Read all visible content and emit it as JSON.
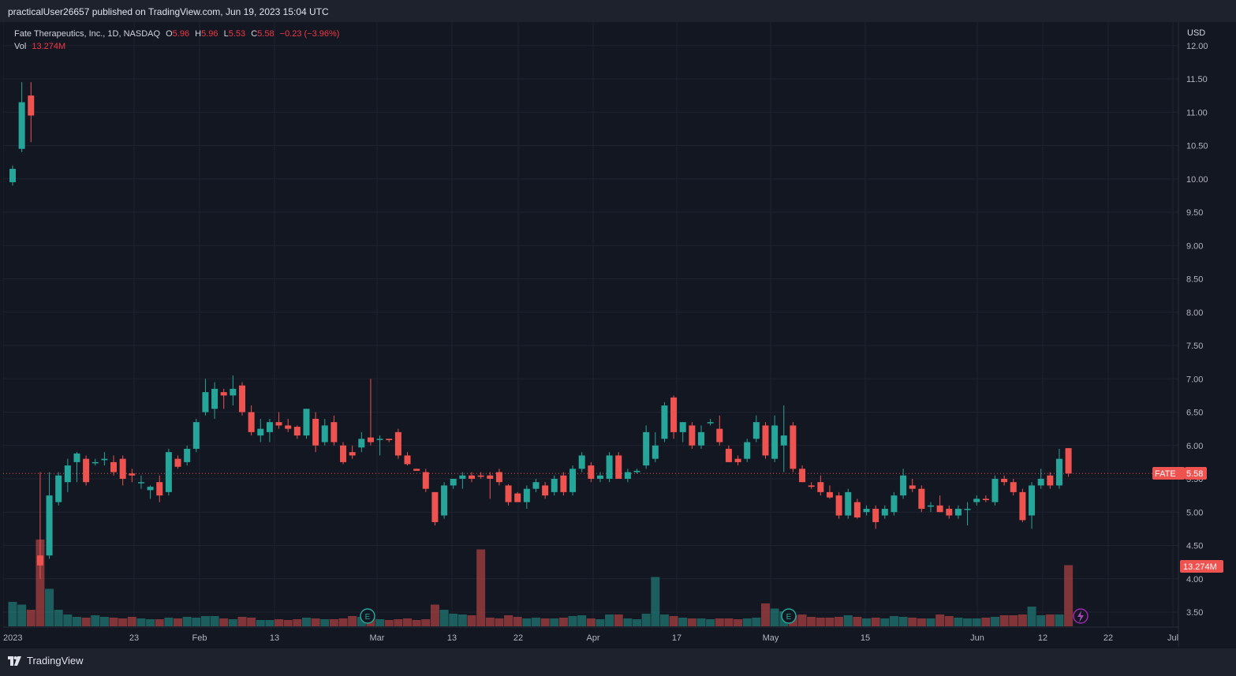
{
  "header": {
    "published": "practicalUser26657 published on TradingView.com, Jun 19, 2023 15:04 UTC"
  },
  "legend": {
    "symbol": "Fate Therapeutics, Inc., 1D, NASDAQ",
    "o_label": "O",
    "o": "5.96",
    "h_label": "H",
    "h": "5.96",
    "l_label": "L",
    "l": "5.53",
    "c_label": "C",
    "c": "5.58",
    "change": "−0.23 (−3.96%)",
    "vol_label": "Vol",
    "vol": "13.274M"
  },
  "price_axis": {
    "currency": "USD",
    "ticks": [
      "12.00",
      "11.50",
      "11.00",
      "10.50",
      "10.00",
      "9.50",
      "9.00",
      "8.50",
      "8.00",
      "7.50",
      "7.00",
      "6.50",
      "6.00",
      "5.50",
      "5.00",
      "4.50",
      "4.00",
      "3.50"
    ]
  },
  "time_axis": {
    "labels": [
      "2023",
      "23",
      "Feb",
      "13",
      "Mar",
      "13",
      "22",
      "Apr",
      "17",
      "May",
      "15",
      "Jun",
      "12",
      "22",
      "Jul"
    ]
  },
  "price_tag": {
    "symbol": "FATE",
    "value": "5.58"
  },
  "volume_tag": {
    "value": "13.274M"
  },
  "footer": {
    "brand": "TradingView"
  },
  "colors": {
    "up": "#26a69a",
    "down": "#ef5350",
    "background": "#131722",
    "grid": "#1f2330"
  },
  "chart_data": {
    "type": "candlestick",
    "symbol": "FATE",
    "title": "Fate Therapeutics, Inc., 1D, NASDAQ",
    "ylim": [
      3.25,
      12.1
    ],
    "candles": [
      {
        "o": 9.95,
        "h": 10.2,
        "l": 9.9,
        "c": 10.15,
        "v": 0.62
      },
      {
        "o": 10.45,
        "h": 11.45,
        "l": 10.4,
        "c": 11.15,
        "v": 0.55
      },
      {
        "o": 11.25,
        "h": 11.45,
        "l": 10.55,
        "c": 10.95,
        "v": 0.42
      },
      {
        "o": 4.35,
        "h": 5.6,
        "l": 4.0,
        "c": 4.2,
        "v": 2.2
      },
      {
        "o": 4.35,
        "h": 5.6,
        "l": 4.3,
        "c": 5.25,
        "v": 0.95
      },
      {
        "o": 5.15,
        "h": 5.6,
        "l": 5.1,
        "c": 5.55,
        "v": 0.42
      },
      {
        "o": 5.45,
        "h": 5.8,
        "l": 5.3,
        "c": 5.7,
        "v": 0.3
      },
      {
        "o": 5.75,
        "h": 5.9,
        "l": 5.45,
        "c": 5.88,
        "v": 0.24
      },
      {
        "o": 5.8,
        "h": 5.85,
        "l": 5.4,
        "c": 5.45,
        "v": 0.22
      },
      {
        "o": 5.75,
        "h": 5.8,
        "l": 5.7,
        "c": 5.75,
        "v": 0.28
      },
      {
        "o": 5.78,
        "h": 5.9,
        "l": 5.7,
        "c": 5.8,
        "v": 0.24
      },
      {
        "o": 5.75,
        "h": 5.85,
        "l": 5.55,
        "c": 5.6,
        "v": 0.22
      },
      {
        "o": 5.8,
        "h": 5.85,
        "l": 5.4,
        "c": 5.5,
        "v": 0.2
      },
      {
        "o": 5.58,
        "h": 5.65,
        "l": 5.45,
        "c": 5.55,
        "v": 0.24
      },
      {
        "o": 5.45,
        "h": 5.55,
        "l": 5.35,
        "c": 5.45,
        "v": 0.2
      },
      {
        "o": 5.33,
        "h": 5.4,
        "l": 5.2,
        "c": 5.38,
        "v": 0.18
      },
      {
        "o": 5.45,
        "h": 5.55,
        "l": 5.15,
        "c": 5.25,
        "v": 0.18
      },
      {
        "o": 5.3,
        "h": 5.95,
        "l": 5.25,
        "c": 5.9,
        "v": 0.22
      },
      {
        "o": 5.8,
        "h": 5.85,
        "l": 5.65,
        "c": 5.68,
        "v": 0.2
      },
      {
        "o": 5.75,
        "h": 6.0,
        "l": 5.7,
        "c": 5.95,
        "v": 0.24
      },
      {
        "o": 5.95,
        "h": 6.4,
        "l": 5.9,
        "c": 6.35,
        "v": 0.22
      },
      {
        "o": 6.5,
        "h": 7.0,
        "l": 6.45,
        "c": 6.8,
        "v": 0.26
      },
      {
        "o": 6.55,
        "h": 6.95,
        "l": 6.4,
        "c": 6.85,
        "v": 0.26
      },
      {
        "o": 6.8,
        "h": 6.85,
        "l": 6.55,
        "c": 6.75,
        "v": 0.2
      },
      {
        "o": 6.75,
        "h": 7.05,
        "l": 6.6,
        "c": 6.85,
        "v": 0.18
      },
      {
        "o": 6.9,
        "h": 6.95,
        "l": 6.45,
        "c": 6.5,
        "v": 0.24
      },
      {
        "o": 6.5,
        "h": 6.6,
        "l": 6.15,
        "c": 6.2,
        "v": 0.22
      },
      {
        "o": 6.15,
        "h": 6.4,
        "l": 6.05,
        "c": 6.25,
        "v": 0.16
      },
      {
        "o": 6.2,
        "h": 6.4,
        "l": 6.05,
        "c": 6.35,
        "v": 0.16
      },
      {
        "o": 6.35,
        "h": 6.5,
        "l": 6.25,
        "c": 6.3,
        "v": 0.18
      },
      {
        "o": 6.3,
        "h": 6.4,
        "l": 6.2,
        "c": 6.25,
        "v": 0.16
      },
      {
        "o": 6.28,
        "h": 6.3,
        "l": 6.1,
        "c": 6.15,
        "v": 0.18
      },
      {
        "o": 6.15,
        "h": 6.55,
        "l": 6.1,
        "c": 6.55,
        "v": 0.22
      },
      {
        "o": 6.4,
        "h": 6.5,
        "l": 5.9,
        "c": 6.0,
        "v": 0.2
      },
      {
        "o": 6.05,
        "h": 6.4,
        "l": 6.0,
        "c": 6.3,
        "v": 0.18
      },
      {
        "o": 6.35,
        "h": 6.45,
        "l": 6.0,
        "c": 6.05,
        "v": 0.18
      },
      {
        "o": 6.0,
        "h": 6.05,
        "l": 5.72,
        "c": 5.75,
        "v": 0.2
      },
      {
        "o": 5.9,
        "h": 6.0,
        "l": 5.8,
        "c": 5.85,
        "v": 0.26
      },
      {
        "o": 5.97,
        "h": 6.2,
        "l": 5.9,
        "c": 6.1,
        "v": 0.24
      },
      {
        "o": 6.12,
        "h": 7.0,
        "l": 6.0,
        "c": 6.05,
        "v": 0.28
      },
      {
        "o": 6.1,
        "h": 6.15,
        "l": 5.85,
        "c": 6.1,
        "v": 0.18
      },
      {
        "o": 6.1,
        "h": 6.1,
        "l": 6.05,
        "c": 6.08,
        "v": 0.16
      },
      {
        "o": 6.2,
        "h": 6.25,
        "l": 5.8,
        "c": 5.85,
        "v": 0.18
      },
      {
        "o": 5.85,
        "h": 5.9,
        "l": 5.7,
        "c": 5.72,
        "v": 0.2
      },
      {
        "o": 5.65,
        "h": 5.65,
        "l": 5.62,
        "c": 5.62,
        "v": 0.16
      },
      {
        "o": 5.6,
        "h": 5.65,
        "l": 5.3,
        "c": 5.35,
        "v": 0.18
      },
      {
        "o": 5.3,
        "h": 5.3,
        "l": 4.8,
        "c": 4.85,
        "v": 0.55
      },
      {
        "o": 4.95,
        "h": 5.45,
        "l": 4.9,
        "c": 5.4,
        "v": 0.42
      },
      {
        "o": 5.4,
        "h": 5.5,
        "l": 5.35,
        "c": 5.5,
        "v": 0.32
      },
      {
        "o": 5.5,
        "h": 5.6,
        "l": 5.35,
        "c": 5.55,
        "v": 0.3
      },
      {
        "o": 5.55,
        "h": 5.6,
        "l": 5.45,
        "c": 5.5,
        "v": 0.28
      },
      {
        "o": 5.55,
        "h": 5.6,
        "l": 5.5,
        "c": 5.53,
        "v": 1.95
      },
      {
        "o": 5.55,
        "h": 5.6,
        "l": 5.2,
        "c": 5.5,
        "v": 0.22
      },
      {
        "o": 5.6,
        "h": 5.65,
        "l": 5.4,
        "c": 5.45,
        "v": 0.2
      },
      {
        "o": 5.4,
        "h": 5.42,
        "l": 5.1,
        "c": 5.15,
        "v": 0.28
      },
      {
        "o": 5.28,
        "h": 5.3,
        "l": 5.15,
        "c": 5.15,
        "v": 0.24
      },
      {
        "o": 5.15,
        "h": 5.4,
        "l": 5.05,
        "c": 5.35,
        "v": 0.2
      },
      {
        "o": 5.35,
        "h": 5.5,
        "l": 5.3,
        "c": 5.45,
        "v": 0.22
      },
      {
        "o": 5.4,
        "h": 5.45,
        "l": 5.2,
        "c": 5.25,
        "v": 0.2
      },
      {
        "o": 5.3,
        "h": 5.55,
        "l": 5.25,
        "c": 5.5,
        "v": 0.2
      },
      {
        "o": 5.55,
        "h": 5.6,
        "l": 5.25,
        "c": 5.3,
        "v": 0.22
      },
      {
        "o": 5.3,
        "h": 5.7,
        "l": 5.25,
        "c": 5.65,
        "v": 0.26
      },
      {
        "o": 5.65,
        "h": 5.9,
        "l": 5.6,
        "c": 5.85,
        "v": 0.28
      },
      {
        "o": 5.7,
        "h": 5.75,
        "l": 5.45,
        "c": 5.5,
        "v": 0.2
      },
      {
        "o": 5.5,
        "h": 5.6,
        "l": 5.45,
        "c": 5.55,
        "v": 0.18
      },
      {
        "o": 5.5,
        "h": 5.9,
        "l": 5.45,
        "c": 5.85,
        "v": 0.3
      },
      {
        "o": 5.85,
        "h": 5.9,
        "l": 5.5,
        "c": 5.5,
        "v": 0.3
      },
      {
        "o": 5.5,
        "h": 5.65,
        "l": 5.45,
        "c": 5.6,
        "v": 0.2
      },
      {
        "o": 5.6,
        "h": 5.65,
        "l": 5.58,
        "c": 5.62,
        "v": 0.18
      },
      {
        "o": 5.7,
        "h": 6.3,
        "l": 5.65,
        "c": 6.2,
        "v": 0.32
      },
      {
        "o": 5.8,
        "h": 6.2,
        "l": 5.75,
        "c": 6.0,
        "v": 1.25
      },
      {
        "o": 6.1,
        "h": 6.65,
        "l": 6.05,
        "c": 6.6,
        "v": 0.3
      },
      {
        "o": 6.72,
        "h": 6.75,
        "l": 6.1,
        "c": 6.2,
        "v": 0.26
      },
      {
        "o": 6.2,
        "h": 6.35,
        "l": 6.05,
        "c": 6.35,
        "v": 0.22
      },
      {
        "o": 6.3,
        "h": 6.35,
        "l": 5.95,
        "c": 6.0,
        "v": 0.2
      },
      {
        "o": 6.0,
        "h": 6.3,
        "l": 5.95,
        "c": 6.2,
        "v": 0.2
      },
      {
        "o": 6.35,
        "h": 6.4,
        "l": 6.3,
        "c": 6.35,
        "v": 0.18
      },
      {
        "o": 6.25,
        "h": 6.45,
        "l": 6.0,
        "c": 6.05,
        "v": 0.2
      },
      {
        "o": 5.95,
        "h": 6.0,
        "l": 5.75,
        "c": 5.75,
        "v": 0.2
      },
      {
        "o": 5.8,
        "h": 5.85,
        "l": 5.7,
        "c": 5.75,
        "v": 0.18
      },
      {
        "o": 5.8,
        "h": 6.1,
        "l": 5.75,
        "c": 6.05,
        "v": 0.2
      },
      {
        "o": 6.1,
        "h": 6.45,
        "l": 6.05,
        "c": 6.35,
        "v": 0.22
      },
      {
        "o": 6.3,
        "h": 6.35,
        "l": 5.8,
        "c": 5.85,
        "v": 0.58
      },
      {
        "o": 5.8,
        "h": 6.45,
        "l": 5.75,
        "c": 6.3,
        "v": 0.45
      },
      {
        "o": 6.0,
        "h": 6.6,
        "l": 5.6,
        "c": 6.15,
        "v": 0.38
      },
      {
        "o": 6.3,
        "h": 6.35,
        "l": 5.6,
        "c": 5.65,
        "v": 0.28
      },
      {
        "o": 5.65,
        "h": 5.7,
        "l": 5.45,
        "c": 5.45,
        "v": 0.3
      },
      {
        "o": 5.4,
        "h": 5.45,
        "l": 5.35,
        "c": 5.38,
        "v": 0.24
      },
      {
        "o": 5.45,
        "h": 5.55,
        "l": 5.25,
        "c": 5.3,
        "v": 0.22
      },
      {
        "o": 5.3,
        "h": 5.4,
        "l": 5.2,
        "c": 5.22,
        "v": 0.22
      },
      {
        "o": 5.25,
        "h": 5.3,
        "l": 4.9,
        "c": 4.95,
        "v": 0.24
      },
      {
        "o": 4.95,
        "h": 5.35,
        "l": 4.9,
        "c": 5.3,
        "v": 0.28
      },
      {
        "o": 5.15,
        "h": 5.2,
        "l": 4.9,
        "c": 4.92,
        "v": 0.24
      },
      {
        "o": 5.0,
        "h": 5.1,
        "l": 4.95,
        "c": 5.05,
        "v": 0.2
      },
      {
        "o": 5.05,
        "h": 5.1,
        "l": 4.75,
        "c": 4.85,
        "v": 0.22
      },
      {
        "o": 4.95,
        "h": 5.1,
        "l": 4.9,
        "c": 5.05,
        "v": 0.2
      },
      {
        "o": 5.0,
        "h": 5.3,
        "l": 4.95,
        "c": 5.25,
        "v": 0.26
      },
      {
        "o": 5.25,
        "h": 5.65,
        "l": 5.2,
        "c": 5.55,
        "v": 0.24
      },
      {
        "o": 5.4,
        "h": 5.5,
        "l": 5.3,
        "c": 5.35,
        "v": 0.22
      },
      {
        "o": 5.35,
        "h": 5.4,
        "l": 5.0,
        "c": 5.05,
        "v": 0.2
      },
      {
        "o": 5.1,
        "h": 5.15,
        "l": 5.0,
        "c": 5.1,
        "v": 0.2
      },
      {
        "o": 5.1,
        "h": 5.25,
        "l": 5.0,
        "c": 5.0,
        "v": 0.3
      },
      {
        "o": 5.05,
        "h": 5.1,
        "l": 4.9,
        "c": 4.95,
        "v": 0.26
      },
      {
        "o": 4.95,
        "h": 5.1,
        "l": 4.9,
        "c": 5.05,
        "v": 0.22
      },
      {
        "o": 5.05,
        "h": 5.15,
        "l": 4.8,
        "c": 5.05,
        "v": 0.2
      },
      {
        "o": 5.15,
        "h": 5.25,
        "l": 5.1,
        "c": 5.2,
        "v": 0.2
      },
      {
        "o": 5.2,
        "h": 5.25,
        "l": 5.15,
        "c": 5.18,
        "v": 0.22
      },
      {
        "o": 5.15,
        "h": 5.55,
        "l": 5.1,
        "c": 5.5,
        "v": 0.24
      },
      {
        "o": 5.5,
        "h": 5.55,
        "l": 5.4,
        "c": 5.45,
        "v": 0.28
      },
      {
        "o": 5.45,
        "h": 5.5,
        "l": 5.25,
        "c": 5.3,
        "v": 0.28
      },
      {
        "o": 5.3,
        "h": 5.35,
        "l": 4.85,
        "c": 4.88,
        "v": 0.3
      },
      {
        "o": 4.95,
        "h": 5.45,
        "l": 4.75,
        "c": 5.4,
        "v": 0.5
      },
      {
        "o": 5.4,
        "h": 5.65,
        "l": 5.35,
        "c": 5.5,
        "v": 0.28
      },
      {
        "o": 5.55,
        "h": 5.6,
        "l": 5.35,
        "c": 5.4,
        "v": 0.3
      },
      {
        "o": 5.4,
        "h": 5.95,
        "l": 5.35,
        "c": 5.8,
        "v": 0.3
      },
      {
        "o": 5.96,
        "h": 5.96,
        "l": 5.53,
        "c": 5.58,
        "v": 1.55
      }
    ]
  }
}
